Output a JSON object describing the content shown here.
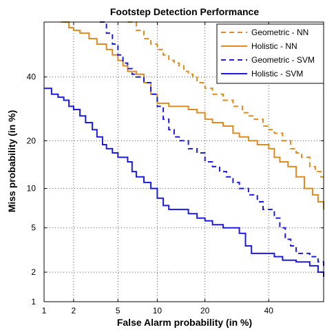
{
  "chart_data": {
    "type": "line",
    "title": "Footstep Detection Performance",
    "xlabel": "False Alarm probability (in %)",
    "ylabel": "Miss probability (in %)",
    "scale": "normal-deviate (DET)",
    "xlim": [
      1,
      60
    ],
    "ylim": [
      1,
      60
    ],
    "x_ticks": [
      1,
      2,
      5,
      10,
      20,
      40
    ],
    "y_ticks": [
      1,
      2,
      5,
      10,
      20,
      40
    ],
    "x_tick_labels": [
      "1",
      "2",
      "5",
      "10",
      "20",
      "40"
    ],
    "y_tick_labels": [
      "1",
      "2",
      "5",
      "10",
      "20",
      "40"
    ],
    "grid": true,
    "legend_position": "top-right",
    "series": [
      {
        "name": "Geometric - NN",
        "color": "#e08a1e",
        "style": "dashed",
        "points": [
          [
            6,
            60
          ],
          [
            7,
            57
          ],
          [
            8,
            54
          ],
          [
            9,
            52
          ],
          [
            10,
            50
          ],
          [
            11,
            48
          ],
          [
            12,
            46
          ],
          [
            13,
            45
          ],
          [
            14,
            44
          ],
          [
            15,
            42
          ],
          [
            16,
            41
          ],
          [
            17,
            40
          ],
          [
            18,
            38
          ],
          [
            20,
            36
          ],
          [
            22,
            34
          ],
          [
            25,
            32
          ],
          [
            28,
            30
          ],
          [
            31,
            28
          ],
          [
            33,
            27
          ],
          [
            35,
            26
          ],
          [
            38,
            24
          ],
          [
            40,
            23
          ],
          [
            42,
            22
          ],
          [
            45,
            20
          ],
          [
            48,
            18
          ],
          [
            50,
            17
          ],
          [
            52,
            16
          ],
          [
            55,
            14
          ],
          [
            57,
            13
          ],
          [
            59,
            12
          ],
          [
            60,
            12
          ]
        ]
      },
      {
        "name": "Holistic - NN",
        "color": "#e08a1e",
        "style": "solid",
        "points": [
          [
            1.5,
            60
          ],
          [
            1.8,
            58
          ],
          [
            2,
            57
          ],
          [
            2.3,
            56
          ],
          [
            2.8,
            54
          ],
          [
            3.3,
            52
          ],
          [
            4,
            50
          ],
          [
            4.5,
            48
          ],
          [
            5,
            46
          ],
          [
            5.5,
            44
          ],
          [
            6,
            42
          ],
          [
            7,
            41
          ],
          [
            8,
            38
          ],
          [
            9,
            34
          ],
          [
            10,
            31
          ],
          [
            12,
            30
          ],
          [
            14,
            30
          ],
          [
            16,
            29
          ],
          [
            18,
            28
          ],
          [
            20,
            26
          ],
          [
            22,
            25
          ],
          [
            25,
            24
          ],
          [
            28,
            22
          ],
          [
            30,
            21
          ],
          [
            33,
            20
          ],
          [
            36,
            19
          ],
          [
            40,
            18
          ],
          [
            42,
            16
          ],
          [
            44,
            15
          ],
          [
            47,
            14
          ],
          [
            50,
            12
          ],
          [
            53,
            10
          ],
          [
            56,
            9
          ],
          [
            58,
            8
          ],
          [
            60,
            7
          ]
        ]
      },
      {
        "name": "Geometric - SVM",
        "color": "#1a1ae0",
        "style": "dashed",
        "points": [
          [
            3.5,
            60
          ],
          [
            4,
            56
          ],
          [
            4.5,
            52
          ],
          [
            5,
            48
          ],
          [
            5.5,
            45
          ],
          [
            6,
            43
          ],
          [
            6.5,
            41
          ],
          [
            7,
            40
          ],
          [
            8,
            38
          ],
          [
            9,
            34
          ],
          [
            10,
            30
          ],
          [
            11,
            26
          ],
          [
            12,
            23
          ],
          [
            13,
            21
          ],
          [
            14,
            20
          ],
          [
            16,
            18
          ],
          [
            18,
            17
          ],
          [
            20,
            15
          ],
          [
            22,
            14
          ],
          [
            24,
            13
          ],
          [
            26,
            12
          ],
          [
            28,
            11
          ],
          [
            30,
            10
          ],
          [
            33,
            9
          ],
          [
            36,
            8
          ],
          [
            38,
            7
          ],
          [
            40,
            7
          ],
          [
            42,
            6
          ],
          [
            44,
            5
          ],
          [
            46,
            4
          ],
          [
            48,
            3.5
          ],
          [
            50,
            3
          ],
          [
            55,
            2.8
          ],
          [
            58,
            2.5
          ],
          [
            60,
            2.2
          ]
        ]
      },
      {
        "name": "Holistic - SVM",
        "color": "#1a1ae0",
        "style": "solid",
        "points": [
          [
            1,
            36
          ],
          [
            1.2,
            34
          ],
          [
            1.4,
            33
          ],
          [
            1.6,
            32
          ],
          [
            1.8,
            30
          ],
          [
            2,
            29
          ],
          [
            2.3,
            27
          ],
          [
            2.6,
            25
          ],
          [
            3,
            23
          ],
          [
            3.3,
            21
          ],
          [
            3.7,
            19
          ],
          [
            4,
            18
          ],
          [
            4.5,
            17
          ],
          [
            5,
            16
          ],
          [
            6,
            15
          ],
          [
            6.5,
            13
          ],
          [
            7,
            12
          ],
          [
            8,
            11
          ],
          [
            9,
            10
          ],
          [
            10,
            8.5
          ],
          [
            11,
            7.5
          ],
          [
            12,
            7
          ],
          [
            14,
            7
          ],
          [
            16,
            6.5
          ],
          [
            18,
            6
          ],
          [
            20,
            5.7
          ],
          [
            22,
            5.3
          ],
          [
            25,
            5
          ],
          [
            28,
            5
          ],
          [
            30,
            4.5
          ],
          [
            32,
            3.5
          ],
          [
            34,
            3
          ],
          [
            38,
            3
          ],
          [
            42,
            2.8
          ],
          [
            45,
            2.6
          ],
          [
            50,
            2.5
          ],
          [
            55,
            2.3
          ],
          [
            58,
            2.0
          ],
          [
            60,
            1.8
          ]
        ]
      }
    ]
  }
}
